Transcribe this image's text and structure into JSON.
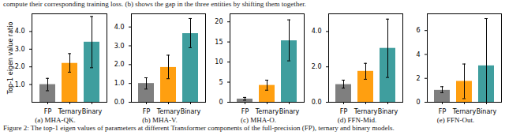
{
  "header_text": "compute their corresponding training loss. (b) shows the gap in the three entities by shifting them together.",
  "caption": "Figure 2: The top-1 eigen values of parameters at different Transformer components of the full-precision (FP), ternary and binary models.",
  "chart_data": [
    {
      "type": "bar",
      "title": "(a) MHA-QK.",
      "y_label": "Top-1 eigen value ratio",
      "categories": [
        "FP",
        "Ternary",
        "Binary"
      ],
      "values": [
        1.0,
        2.2,
        3.4
      ],
      "error_low": [
        0.65,
        1.7,
        1.95
      ],
      "error_high": [
        1.35,
        2.75,
        4.85
      ],
      "colors": [
        "#7f7f7f",
        "#ff9f10",
        "#3f9e9e"
      ],
      "ylim": [
        0,
        5
      ],
      "yticks": [
        1,
        2,
        3,
        4
      ]
    },
    {
      "type": "bar",
      "title": "(b) MHA-V.",
      "categories": [
        "FP",
        "Ternary",
        "Binary"
      ],
      "values": [
        1.0,
        1.85,
        3.65
      ],
      "error_low": [
        0.7,
        1.25,
        2.9
      ],
      "error_high": [
        1.3,
        2.5,
        4.45
      ],
      "colors": [
        "#7f7f7f",
        "#ff9f10",
        "#3f9e9e"
      ],
      "ylim": [
        0,
        4.7
      ],
      "yticks": [
        0,
        1,
        2,
        3,
        4
      ]
    },
    {
      "type": "bar",
      "title": "(c) MHA-O.",
      "categories": [
        "FP",
        "Ternary",
        "Binary"
      ],
      "values": [
        0.8,
        4.2,
        15.3
      ],
      "error_low": [
        0.5,
        3.0,
        10.3
      ],
      "error_high": [
        1.2,
        5.5,
        20.5
      ],
      "colors": [
        "#7f7f7f",
        "#ff9f10",
        "#3f9e9e"
      ],
      "ylim": [
        0,
        22
      ],
      "yticks": [
        0,
        5,
        10,
        15,
        20
      ]
    },
    {
      "type": "bar",
      "title": "(d) FFN-Mid.",
      "categories": [
        "FP",
        "Ternary",
        "Binary"
      ],
      "values": [
        1.0,
        1.75,
        3.05
      ],
      "error_low": [
        0.8,
        1.3,
        1.4
      ],
      "error_high": [
        1.25,
        2.2,
        4.7
      ],
      "colors": [
        "#7f7f7f",
        "#ff9f10",
        "#3f9e9e"
      ],
      "ylim": [
        0,
        5
      ],
      "yticks": [
        0,
        2,
        4
      ]
    },
    {
      "type": "bar",
      "title": "(e) FFN-Out.",
      "categories": [
        "FP",
        "Ternary",
        "Binary"
      ],
      "values": [
        1.0,
        1.75,
        3.05
      ],
      "error_low": [
        0.8,
        0.3,
        0.0
      ],
      "error_high": [
        1.3,
        3.2,
        7.0
      ],
      "colors": [
        "#7f7f7f",
        "#ff9f10",
        "#3f9e9e"
      ],
      "ylim": [
        0,
        7.4
      ],
      "yticks": [
        0,
        2,
        4,
        6
      ]
    }
  ]
}
